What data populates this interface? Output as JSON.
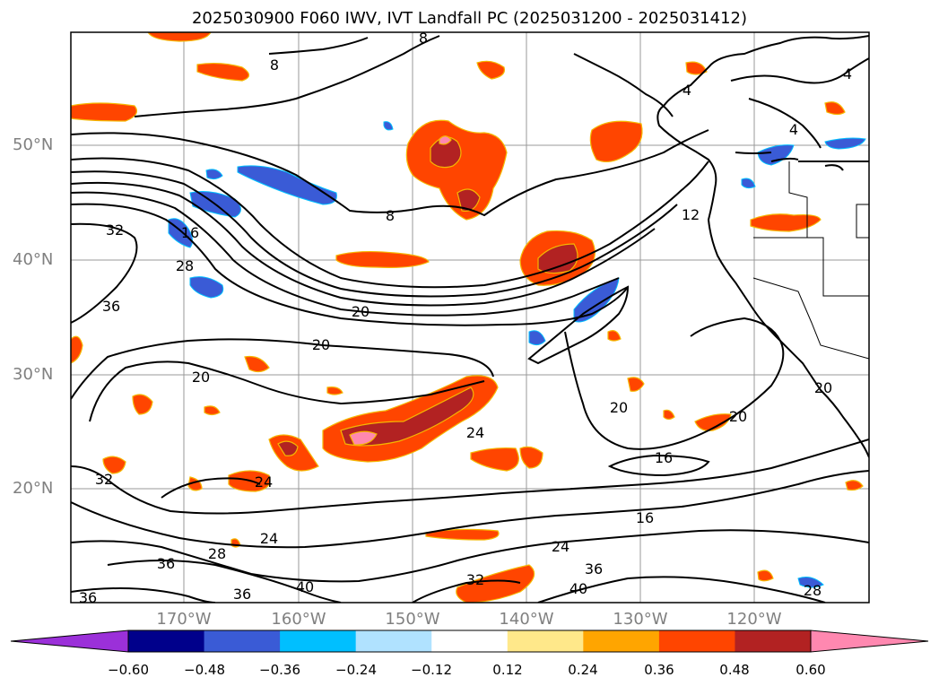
{
  "title": "2025030900 F060 IWV, IVT Landfall PC (2025031200 - 2025031412)",
  "map": {
    "lat_labels": [
      "50°N",
      "40°N",
      "30°N",
      "20°N"
    ],
    "lon_labels": [
      "170°W",
      "160°W",
      "150°W",
      "140°W",
      "130°W",
      "120°W"
    ],
    "contour_labels": [
      "8",
      "8",
      "4",
      "4",
      "4",
      "12",
      "8",
      "32",
      "16",
      "28",
      "36",
      "20",
      "20",
      "20",
      "20",
      "24",
      "20",
      "20",
      "16",
      "16",
      "32",
      "24",
      "28",
      "36",
      "24",
      "36",
      "32",
      "36",
      "40",
      "28",
      "36",
      "40"
    ],
    "contour_color": "#000000",
    "grid": true,
    "coastline": true
  },
  "colorbar": {
    "ticks": [
      "−0.60",
      "−0.48",
      "−0.36",
      "−0.24",
      "−0.12",
      "0.12",
      "0.24",
      "0.36",
      "0.48",
      "0.60"
    ],
    "colors": [
      "#9b30d9",
      "#00008b",
      "#3a5bd6",
      "#00bfff",
      "#b0e2ff",
      "#ffffff",
      "#ffe88a",
      "#ffa500",
      "#ff4500",
      "#b22222",
      "#ff88b0"
    ],
    "extend": "both"
  }
}
